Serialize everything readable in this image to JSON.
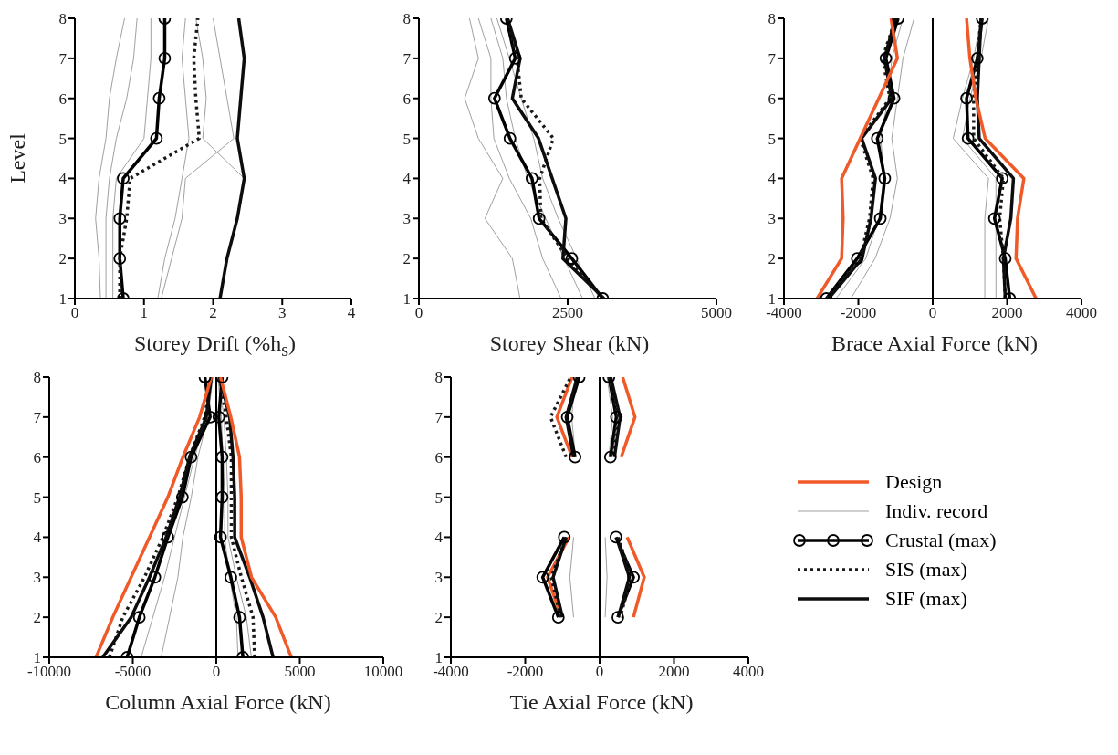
{
  "chart_data": [
    {
      "type": "line",
      "xlabel": "Storey Drift (%h$_{s}$)",
      "ylabel": "Level",
      "xlim": [
        0,
        4
      ],
      "xticks": [
        0,
        1,
        2,
        3,
        4
      ],
      "ylim": [
        1,
        8
      ],
      "yticks": [
        1,
        2,
        3,
        4,
        5,
        6,
        7,
        8
      ],
      "series": [
        {
          "color": "#a0a0a0",
          "x": [
            0.37,
            0.35,
            0.3,
            0.35,
            0.45,
            0.5,
            0.6,
            0.72
          ],
          "values": [
            1,
            2,
            3,
            4,
            5,
            6,
            7,
            8
          ]
        },
        {
          "color": "#a0a0a0",
          "x": [
            0.45,
            0.45,
            0.45,
            0.5,
            0.6,
            0.75,
            0.85,
            0.9
          ],
          "values": [
            1,
            2,
            3,
            4,
            5,
            6,
            7,
            8
          ]
        },
        {
          "color": "#a0a0a0",
          "x": [
            0.55,
            0.55,
            0.55,
            0.6,
            1.0,
            1.05,
            1.1,
            1.1
          ],
          "values": [
            1,
            2,
            3,
            4,
            5,
            6,
            7,
            8
          ]
        },
        {
          "color": "#a0a0a0",
          "x": [
            1.2,
            1.3,
            1.45,
            1.55,
            1.65,
            1.6,
            1.55,
            1.6
          ],
          "values": [
            1,
            2,
            3,
            4,
            5,
            6,
            7,
            8
          ]
        },
        {
          "color": "#a0a0a0",
          "x": [
            1.25,
            1.4,
            1.55,
            1.6,
            2.3,
            2.2,
            2.1,
            2.0
          ],
          "values": [
            1,
            2,
            3,
            4,
            5,
            6,
            7,
            8
          ]
        },
        {
          "color": "#a0a0a0",
          "x": [
            2.1,
            2.2,
            2.35,
            2.45,
            1.85,
            1.9,
            1.85,
            1.75
          ],
          "values": [
            1,
            2,
            3,
            4,
            5,
            6,
            7,
            8
          ]
        },
        {
          "color": "#000000",
          "marker": "circle",
          "x": [
            0.7,
            0.65,
            0.65,
            0.7,
            1.18,
            1.22,
            1.3,
            1.3
          ],
          "values": [
            1,
            2,
            3,
            4,
            5,
            6,
            7,
            8
          ]
        },
        {
          "color": "#1a1a1a",
          "line_style": "dotted",
          "x": [
            0.65,
            0.65,
            0.75,
            0.8,
            1.8,
            1.75,
            1.72,
            1.78
          ],
          "values": [
            1,
            2,
            3,
            4,
            5,
            6,
            7,
            8
          ]
        },
        {
          "color": "#0d0d0d",
          "x": [
            2.1,
            2.2,
            2.35,
            2.45,
            2.35,
            2.4,
            2.45,
            2.37
          ],
          "values": [
            1,
            2,
            3,
            4,
            5,
            6,
            7,
            8
          ]
        }
      ]
    },
    {
      "type": "line",
      "xlabel": "Storey Shear (kN)",
      "xlim": [
        0,
        5000
      ],
      "xticks": [
        0,
        2500,
        5000
      ],
      "ylim": [
        1,
        8
      ],
      "yticks": [
        1,
        2,
        3,
        4,
        5,
        6,
        7,
        8
      ],
      "series": [
        {
          "color": "#a0a0a0",
          "x": [
            1700,
            1570,
            1110,
            1410,
            1000,
            770,
            1000,
            850
          ],
          "values": [
            1,
            2,
            3,
            4,
            5,
            6,
            7,
            8
          ]
        },
        {
          "color": "#a0a0a0",
          "x": [
            2390,
            2080,
            1880,
            1520,
            1260,
            1210,
            1210,
            1000
          ],
          "values": [
            1,
            2,
            3,
            4,
            5,
            6,
            7,
            8
          ]
        },
        {
          "color": "#a0a0a0",
          "x": [
            2750,
            2440,
            2130,
            1830,
            1620,
            1470,
            1410,
            1210
          ],
          "values": [
            1,
            2,
            3,
            4,
            5,
            6,
            7,
            8
          ]
        },
        {
          "color": "#a0a0a0",
          "x": [
            2960,
            2650,
            2340,
            2080,
            1930,
            1720,
            1520,
            1310
          ],
          "values": [
            1,
            2,
            3,
            4,
            5,
            6,
            7,
            8
          ]
        },
        {
          "color": "#000000",
          "marker": "circle",
          "x": [
            3090,
            2570,
            2020,
            1900,
            1530,
            1270,
            1620,
            1470
          ],
          "values": [
            1,
            2,
            3,
            4,
            5,
            6,
            7,
            8
          ]
        },
        {
          "color": "#1a1a1a",
          "line_style": "dotted",
          "x": [
            3100,
            2500,
            2050,
            2030,
            2260,
            1720,
            1650,
            1490
          ],
          "values": [
            1,
            2,
            3,
            4,
            5,
            6,
            7,
            8
          ]
        },
        {
          "color": "#0d0d0d",
          "x": [
            3110,
            2420,
            2470,
            2240,
            2010,
            1570,
            1700,
            1490
          ],
          "values": [
            1,
            2,
            3,
            4,
            5,
            6,
            7,
            8
          ]
        }
      ]
    },
    {
      "type": "line",
      "xlabel": "Brace Axial Force (kN)",
      "xlim": [
        -4000,
        4000
      ],
      "xticks": [
        -4000,
        -2000,
        0,
        2000,
        4000
      ],
      "ylim": [
        1,
        8
      ],
      "yticks": [
        1,
        2,
        3,
        4,
        5,
        6,
        7,
        8
      ],
      "ref_lines": [
        {
          "axis": "x",
          "value": 0,
          "color": "#000000"
        }
      ],
      "series": [
        {
          "color": "#a0a0a0",
          "x": [
            -2200,
            -1550,
            -1150,
            -950,
            -1100,
            -950,
            -800,
            -500,
            null,
            1300,
            1100,
            800,
            550,
            1500,
            1400,
            1400,
            1400
          ],
          "values": [
            1,
            2,
            3,
            4,
            5,
            6,
            7,
            8,
            null,
            8,
            7,
            6,
            5,
            4,
            3,
            2,
            1
          ]
        },
        {
          "color": "#a0a0a0",
          "x": [
            -2600,
            -1800,
            -1450,
            -1300,
            -1400,
            -1200,
            -1100,
            -800,
            null,
            1500,
            1300,
            1000,
            800,
            1700,
            1700,
            1700,
            1700
          ],
          "values": [
            1,
            2,
            3,
            4,
            5,
            6,
            7,
            8,
            null,
            8,
            7,
            6,
            5,
            4,
            3,
            2,
            1
          ]
        },
        {
          "color": "#000000",
          "marker": "circle",
          "x": [
            -2860,
            -2030,
            -1410,
            -1290,
            -1490,
            -1040,
            -1260,
            -930,
            null,
            1330,
            1200,
            910,
            950,
            1870,
            1660,
            1950,
            2070
          ],
          "values": [
            1,
            2,
            3,
            4,
            5,
            6,
            7,
            8,
            null,
            8,
            7,
            6,
            5,
            4,
            3,
            2,
            1
          ]
        },
        {
          "color": "#1a1a1a",
          "line_style": "dotted",
          "x": [
            -2850,
            -1950,
            -1700,
            -1600,
            -1950,
            -1150,
            -1350,
            -1000,
            null,
            1300,
            1200,
            1100,
            1100,
            1900,
            1800,
            1900,
            1950
          ],
          "values": [
            1,
            2,
            3,
            4,
            5,
            6,
            7,
            8,
            null,
            8,
            7,
            6,
            5,
            4,
            3,
            2,
            1
          ]
        },
        {
          "color": "#0d0d0d",
          "x": [
            -2800,
            -1900,
            -1660,
            -1540,
            -1910,
            -1100,
            -1300,
            -1000,
            null,
            1300,
            1250,
            1200,
            1250,
            2170,
            2100,
            1900,
            1950
          ],
          "values": [
            1,
            2,
            3,
            4,
            5,
            6,
            7,
            8,
            null,
            8,
            7,
            6,
            5,
            4,
            3,
            2,
            1
          ]
        },
        {
          "color": "#f05a28",
          "x": [
            -3110,
            -2450,
            -2410,
            -2450,
            -1950,
            -1450,
            -950,
            -1120,
            null,
            910,
            1000,
            1160,
            1410,
            2450,
            2280,
            2240,
            2780
          ],
          "values": [
            1,
            2,
            3,
            4,
            5,
            6,
            7,
            8,
            null,
            8,
            7,
            6,
            5,
            4,
            3,
            2,
            1
          ]
        }
      ]
    },
    {
      "type": "line",
      "xlabel": "Column Axial Force (kN)",
      "xlim": [
        -10000,
        10000
      ],
      "xticks": [
        -10000,
        -5000,
        0,
        5000,
        10000
      ],
      "ylim": [
        1,
        8
      ],
      "yticks": [
        1,
        2,
        3,
        4,
        5,
        6,
        7,
        8
      ],
      "ref_lines": [
        {
          "axis": "x",
          "value": 0,
          "color": "#000000"
        }
      ],
      "series": [
        {
          "color": "#a0a0a0",
          "x": [
            -3300,
            -2800,
            -2300,
            -2000,
            -1500,
            -1100,
            -500,
            -200,
            null,
            100,
            300,
            400,
            500,
            500,
            800,
            1200,
            1300
          ],
          "values": [
            1,
            2,
            3,
            4,
            5,
            6,
            7,
            8,
            null,
            8,
            7,
            6,
            5,
            4,
            3,
            2,
            1
          ]
        },
        {
          "color": "#a0a0a0",
          "x": [
            -4500,
            -3800,
            -3100,
            -2500,
            -1900,
            -1300,
            -600,
            -250,
            null,
            150,
            450,
            600,
            700,
            700,
            1200,
            1800,
            2100
          ],
          "values": [
            1,
            2,
            3,
            4,
            5,
            6,
            7,
            8,
            null,
            8,
            7,
            6,
            5,
            4,
            3,
            2,
            1
          ]
        },
        {
          "color": "#000000",
          "marker": "circle",
          "x": [
            -5340,
            -4610,
            -3680,
            -2900,
            -2030,
            -1510,
            -370,
            -680,
            null,
            350,
            150,
            350,
            350,
            250,
            870,
            1390,
            1590
          ],
          "values": [
            1,
            2,
            3,
            4,
            5,
            6,
            7,
            8,
            null,
            8,
            7,
            6,
            5,
            4,
            3,
            2,
            1
          ]
        },
        {
          "color": "#1a1a1a",
          "line_style": "dotted",
          "x": [
            -6400,
            -5600,
            -4300,
            -3200,
            -2300,
            -1600,
            -700,
            -300,
            null,
            200,
            600,
            900,
            900,
            900,
            1500,
            2200,
            2300
          ],
          "values": [
            1,
            2,
            3,
            4,
            5,
            6,
            7,
            8,
            null,
            8,
            7,
            6,
            5,
            4,
            3,
            2,
            1
          ]
        },
        {
          "color": "#0d0d0d",
          "x": [
            -6800,
            -5100,
            -4000,
            -3000,
            -2200,
            -1600,
            -600,
            -300,
            null,
            200,
            800,
            1000,
            1100,
            1100,
            2000,
            2800,
            3400
          ],
          "values": [
            1,
            2,
            3,
            4,
            5,
            6,
            7,
            8,
            null,
            8,
            7,
            6,
            5,
            4,
            3,
            2,
            1
          ]
        },
        {
          "color": "#f05a28",
          "x": [
            -7200,
            -6200,
            -5100,
            -4000,
            -2900,
            -2000,
            -1000,
            -300,
            null,
            250,
            870,
            1390,
            1490,
            1490,
            2110,
            3560,
            4490
          ],
          "values": [
            1,
            2,
            3,
            4,
            5,
            6,
            7,
            8,
            null,
            8,
            7,
            6,
            5,
            4,
            3,
            2,
            1
          ]
        }
      ]
    },
    {
      "type": "line",
      "xlabel": "Tie Axial Force (kN)",
      "xlim": [
        -4000,
        4000
      ],
      "xticks": [
        -4000,
        -2000,
        0,
        2000,
        4000
      ],
      "ylim": [
        1,
        8
      ],
      "yticks": [
        1,
        2,
        3,
        4,
        5,
        6,
        7,
        8
      ],
      "ref_lines": [
        {
          "axis": "x",
          "value": 0,
          "color": "#000000"
        }
      ],
      "legend": "right",
      "series": [
        {
          "name": "Design",
          "color": "#f05a28",
          "x": [
            -1030,
            -1400,
            -820,
            null,
            -740,
            -1150,
            -740,
            null,
            620,
            950,
            580,
            null,
            740,
            1200,
            910
          ],
          "values": [
            2,
            3,
            4,
            null,
            6,
            7,
            8,
            null,
            8,
            7,
            6,
            null,
            4,
            3,
            2
          ]
        },
        {
          "name": "Indiv. record",
          "color": "#a0a0a0",
          "x": [
            -700,
            -800,
            -700,
            null,
            -650,
            -750,
            -650,
            null,
            200,
            350,
            250,
            null,
            150,
            200,
            150
          ],
          "values": [
            2,
            3,
            4,
            null,
            6,
            7,
            8,
            null,
            8,
            7,
            6,
            null,
            4,
            3,
            2
          ]
        },
        {
          "name": "Crustal (max)",
          "color": "#000000",
          "marker": "circle",
          "x": [
            -1110,
            -1530,
            -950,
            null,
            -660,
            -870,
            -550,
            null,
            250,
            450,
            290,
            null,
            440,
            910,
            490
          ],
          "values": [
            2,
            3,
            4,
            null,
            6,
            7,
            8,
            null,
            8,
            7,
            6,
            null,
            4,
            3,
            2
          ]
        },
        {
          "name": "SIS (max)",
          "color": "#1a1a1a",
          "line_style": "dotted",
          "x": [
            -1050,
            -1300,
            -900,
            null,
            -900,
            -1320,
            -780,
            null,
            250,
            500,
            350,
            null,
            500,
            850,
            550
          ],
          "values": [
            2,
            3,
            4,
            null,
            6,
            7,
            8,
            null,
            8,
            7,
            6,
            null,
            4,
            3,
            2
          ]
        },
        {
          "name": "SIF (max)",
          "color": "#0d0d0d",
          "x": [
            -1000,
            -1250,
            -900,
            null,
            -700,
            -900,
            -600,
            null,
            300,
            550,
            400,
            null,
            450,
            800,
            500
          ],
          "values": [
            2,
            3,
            4,
            null,
            6,
            7,
            8,
            null,
            8,
            7,
            6,
            null,
            4,
            3,
            2
          ]
        }
      ]
    }
  ]
}
